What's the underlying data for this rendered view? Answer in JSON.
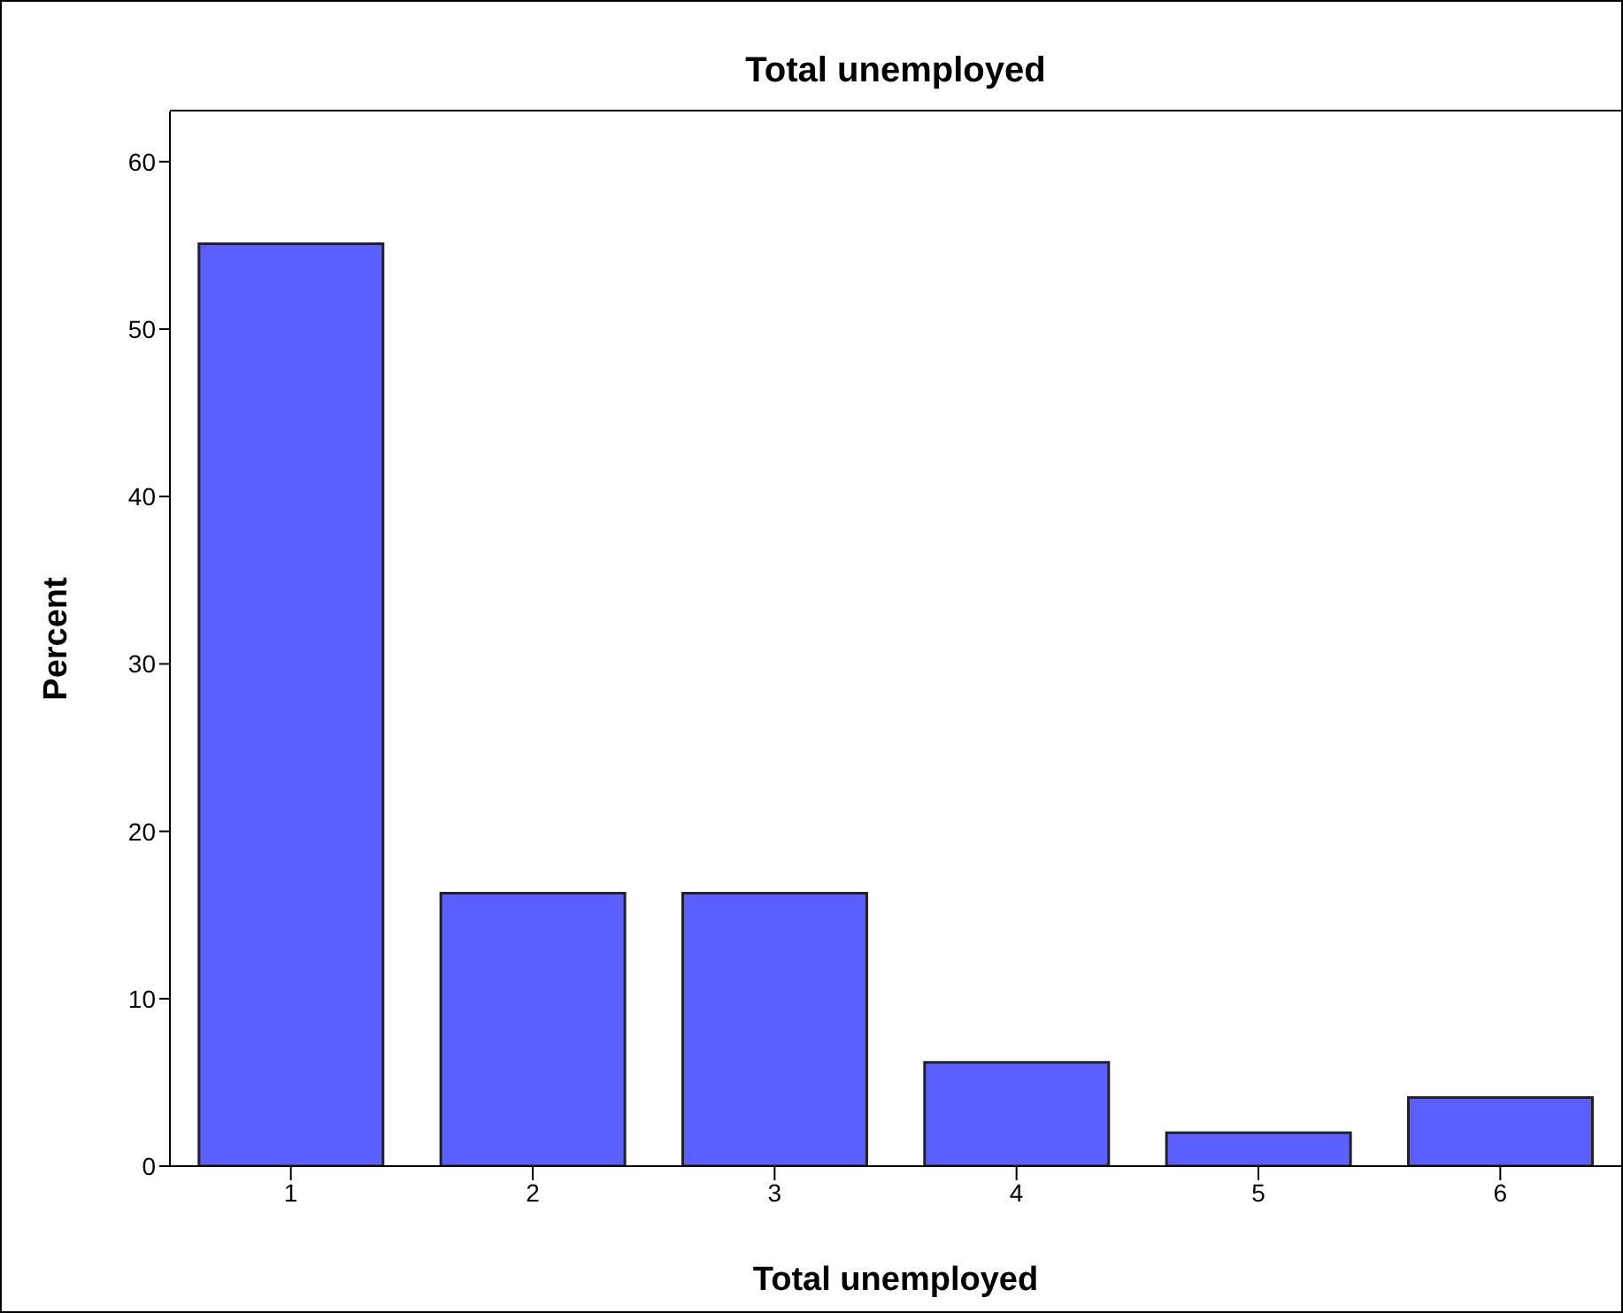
{
  "chart_data": {
    "type": "bar",
    "title": "Total unemployed",
    "xlabel": "Total unemployed",
    "ylabel": "Percent",
    "categories": [
      "1",
      "2",
      "3",
      "4",
      "5",
      "6"
    ],
    "values": [
      55.1,
      16.3,
      16.3,
      6.2,
      2.0,
      4.1
    ],
    "color": "#5b5fff",
    "ylim": [
      0,
      63
    ],
    "yticks": [
      0,
      10,
      20,
      30,
      40,
      50,
      60
    ],
    "grid": false,
    "legend": false
  }
}
